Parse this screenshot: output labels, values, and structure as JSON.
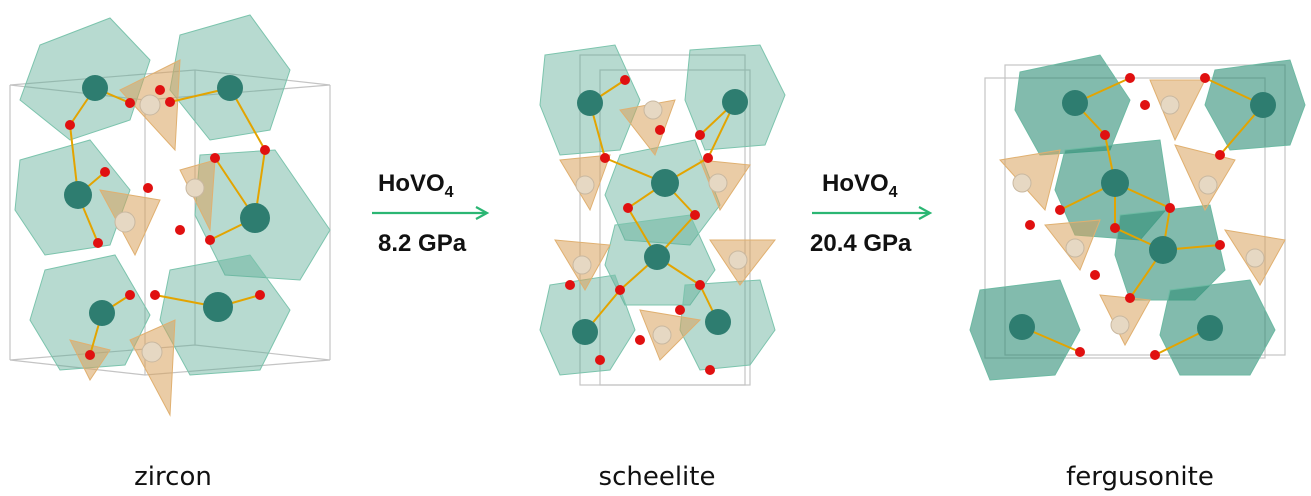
{
  "phases": [
    {
      "name": "zircon"
    },
    {
      "name": "scheelite"
    },
    {
      "name": "fergusonite"
    }
  ],
  "transitions": [
    {
      "compound_base": "HoVO",
      "compound_subscript": "4",
      "pressure": "8.2 GPa"
    },
    {
      "compound_base": "HoVO",
      "compound_subscript": "4",
      "pressure": "20.4 GPa"
    }
  ],
  "colors": {
    "ho_polyhedron": "#5fae97",
    "ho_atom": "#2e7d70",
    "v_tetrahedron": "#d9a35c",
    "v_atom": "#e6d8c3",
    "o_atom": "#e01010",
    "bond": "#e3a400",
    "arrow": "#2bb673",
    "cell": "#bdbdbd"
  }
}
